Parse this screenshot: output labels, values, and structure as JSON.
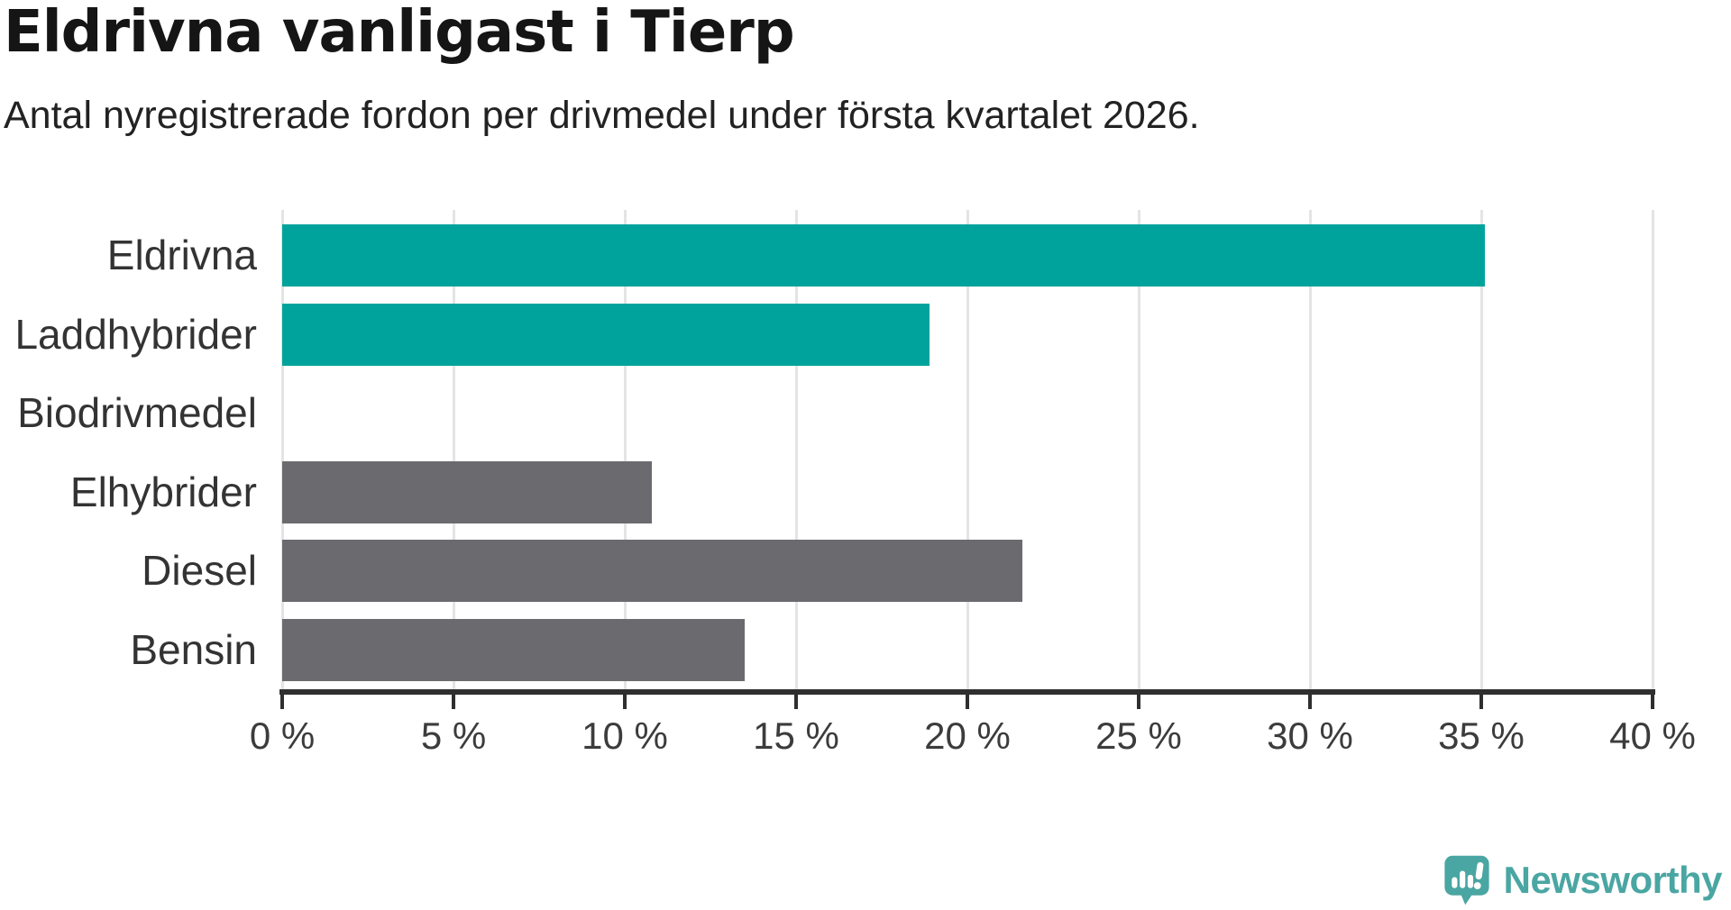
{
  "title": "Eldrivna vanligast i Tierp",
  "subtitle": "Antal nyregistrerade fordon per drivmedel under första kvartalet 2026.",
  "chart_data": {
    "type": "bar",
    "orientation": "horizontal",
    "title": "Eldrivna vanligast i Tierp",
    "subtitle": "Antal nyregistrerade fordon per drivmedel under första kvartalet 2026.",
    "categories": [
      "Eldrivna",
      "Laddhybrider",
      "Biodrivmedel",
      "Elhybrider",
      "Diesel",
      "Bensin"
    ],
    "values": [
      35.1,
      18.9,
      0,
      10.8,
      21.6,
      13.5
    ],
    "unit": "%",
    "xlim": [
      0,
      40
    ],
    "x_ticks": [
      0,
      5,
      10,
      15,
      20,
      25,
      30,
      35,
      40
    ],
    "x_tick_labels": [
      "0 %",
      "5 %",
      "10 %",
      "15 %",
      "20 %",
      "25 %",
      "30 %",
      "35 %",
      "40 %"
    ],
    "grid": true,
    "legend": "none",
    "bar_colors": [
      "#00a39b",
      "#00a39b",
      "#6b6a6f",
      "#6b6a6f",
      "#6b6a6f",
      "#6b6a6f"
    ],
    "highlight_color": "#00a39b",
    "default_color": "#6b6a6f"
  },
  "branding": {
    "logo_text": "Newsworthy",
    "logo_color": "#4aa6a2",
    "logo_icon": "speech-bubble-bar-chart-exclamation"
  }
}
